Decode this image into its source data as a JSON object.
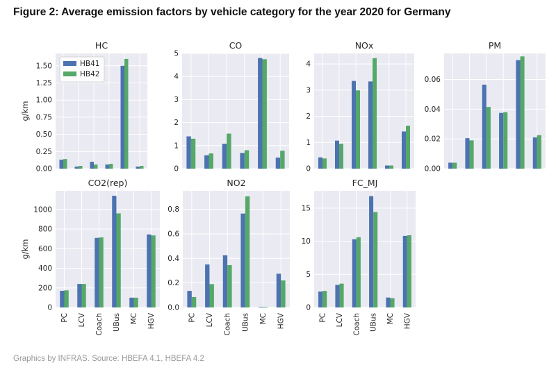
{
  "figure": {
    "title": "Figure 2: Average emission factors by vehicle category for the year 2020 for Germany",
    "source": "Graphics by INFRAS. Source: HBEFA 4.1, HBEFA 4.2"
  },
  "colors": {
    "HB41": "#4c72b0",
    "HB42": "#55a868",
    "panel_bg": "#eaeaf2",
    "grid": "#ffffff"
  },
  "chart_data": [
    {
      "type": "bar",
      "title": "HC",
      "ylabel": "g/km",
      "ylim": [
        0,
        1.68
      ],
      "yticks": [
        0,
        0.25,
        0.5,
        0.75,
        1.0,
        1.25,
        1.5
      ],
      "ytick_labels": [
        "0.00",
        "0.25",
        "0.50",
        "0.75",
        "1.00",
        "1.25",
        "1.50"
      ],
      "categories": [
        "PC",
        "LCV",
        "Coach",
        "UBus",
        "MC",
        "HGV"
      ],
      "show_xticklabels": false,
      "legend": {
        "position": "top-left",
        "entries": [
          "HB41",
          "HB42"
        ]
      },
      "series": [
        {
          "name": "HB41",
          "values": [
            0.13,
            0.03,
            0.1,
            0.06,
            1.5,
            0.03
          ]
        },
        {
          "name": "HB42",
          "values": [
            0.14,
            0.04,
            0.06,
            0.07,
            1.6,
            0.04
          ]
        }
      ]
    },
    {
      "type": "bar",
      "title": "CO",
      "ylabel": "",
      "ylim": [
        0,
        5.0
      ],
      "yticks": [
        0,
        1,
        2,
        3,
        4,
        5
      ],
      "ytick_labels": [
        "0",
        "1",
        "2",
        "3",
        "4",
        "5"
      ],
      "categories": [
        "PC",
        "LCV",
        "Coach",
        "UBus",
        "MC",
        "HGV"
      ],
      "show_xticklabels": false,
      "series": [
        {
          "name": "HB41",
          "values": [
            1.4,
            0.58,
            1.08,
            0.68,
            4.8,
            0.48
          ]
        },
        {
          "name": "HB42",
          "values": [
            1.3,
            0.66,
            1.52,
            0.8,
            4.75,
            0.78
          ]
        }
      ]
    },
    {
      "type": "bar",
      "title": "NOx",
      "ylabel": "",
      "ylim": [
        0,
        4.4
      ],
      "yticks": [
        0,
        1,
        2,
        3,
        4
      ],
      "ytick_labels": [
        "0",
        "1",
        "2",
        "3",
        "4"
      ],
      "categories": [
        "PC",
        "LCV",
        "Coach",
        "UBus",
        "MC",
        "HGV"
      ],
      "show_xticklabels": false,
      "series": [
        {
          "name": "HB41",
          "values": [
            0.43,
            1.07,
            3.35,
            3.33,
            0.12,
            1.42
          ]
        },
        {
          "name": "HB42",
          "values": [
            0.39,
            0.95,
            2.99,
            4.22,
            0.12,
            1.64
          ]
        }
      ]
    },
    {
      "type": "bar",
      "title": "PM",
      "ylabel": "",
      "ylim": [
        0,
        0.0775
      ],
      "yticks": [
        0,
        0.02,
        0.04,
        0.06
      ],
      "ytick_labels": [
        "0.00",
        "0.02",
        "0.04",
        "0.06"
      ],
      "categories": [
        "PC",
        "LCV",
        "Coach",
        "UBus",
        "MC",
        "HGV"
      ],
      "show_xticklabels": false,
      "series": [
        {
          "name": "HB41",
          "values": [
            0.004,
            0.0205,
            0.0565,
            0.0375,
            0.073,
            0.021
          ]
        },
        {
          "name": "HB42",
          "values": [
            0.004,
            0.019,
            0.0415,
            0.038,
            0.0755,
            0.0225
          ]
        }
      ]
    },
    {
      "type": "bar",
      "title": "CO2(rep)",
      "ylabel": "g/km",
      "ylim": [
        0,
        1190
      ],
      "yticks": [
        0,
        200,
        400,
        600,
        800,
        1000
      ],
      "ytick_labels": [
        "0",
        "200",
        "400",
        "600",
        "800",
        "1000"
      ],
      "categories": [
        "PC",
        "LCV",
        "Coach",
        "UBus",
        "MC",
        "HGV"
      ],
      "show_xticklabels": true,
      "series": [
        {
          "name": "HB41",
          "values": [
            170,
            240,
            710,
            1140,
            100,
            745
          ]
        },
        {
          "name": "HB42",
          "values": [
            175,
            240,
            715,
            960,
            100,
            735
          ]
        }
      ]
    },
    {
      "type": "bar",
      "title": "NO2",
      "ylabel": "",
      "ylim": [
        0,
        0.95
      ],
      "yticks": [
        0,
        0.2,
        0.4,
        0.6,
        0.8
      ],
      "ytick_labels": [
        "0.0",
        "0.2",
        "0.4",
        "0.6",
        "0.8"
      ],
      "categories": [
        "PC",
        "LCV",
        "Coach",
        "UBus",
        "MC",
        "HGV"
      ],
      "show_xticklabels": true,
      "series": [
        {
          "name": "HB41",
          "values": [
            0.135,
            0.35,
            0.425,
            0.765,
            0.005,
            0.275
          ]
        },
        {
          "name": "HB42",
          "values": [
            0.085,
            0.19,
            0.345,
            0.905,
            0.005,
            0.22
          ]
        }
      ]
    },
    {
      "type": "bar",
      "title": "FC_MJ",
      "ylabel": "",
      "ylim": [
        0,
        17.6
      ],
      "yticks": [
        0,
        5,
        10,
        15
      ],
      "ytick_labels": [
        "0",
        "5",
        "10",
        "15"
      ],
      "categories": [
        "PC",
        "LCV",
        "Coach",
        "UBus",
        "MC",
        "HGV"
      ],
      "show_xticklabels": true,
      "series": [
        {
          "name": "HB41",
          "values": [
            2.4,
            3.4,
            10.3,
            16.8,
            1.5,
            10.8
          ]
        },
        {
          "name": "HB42",
          "values": [
            2.5,
            3.6,
            10.6,
            14.4,
            1.4,
            10.9
          ]
        }
      ]
    }
  ]
}
